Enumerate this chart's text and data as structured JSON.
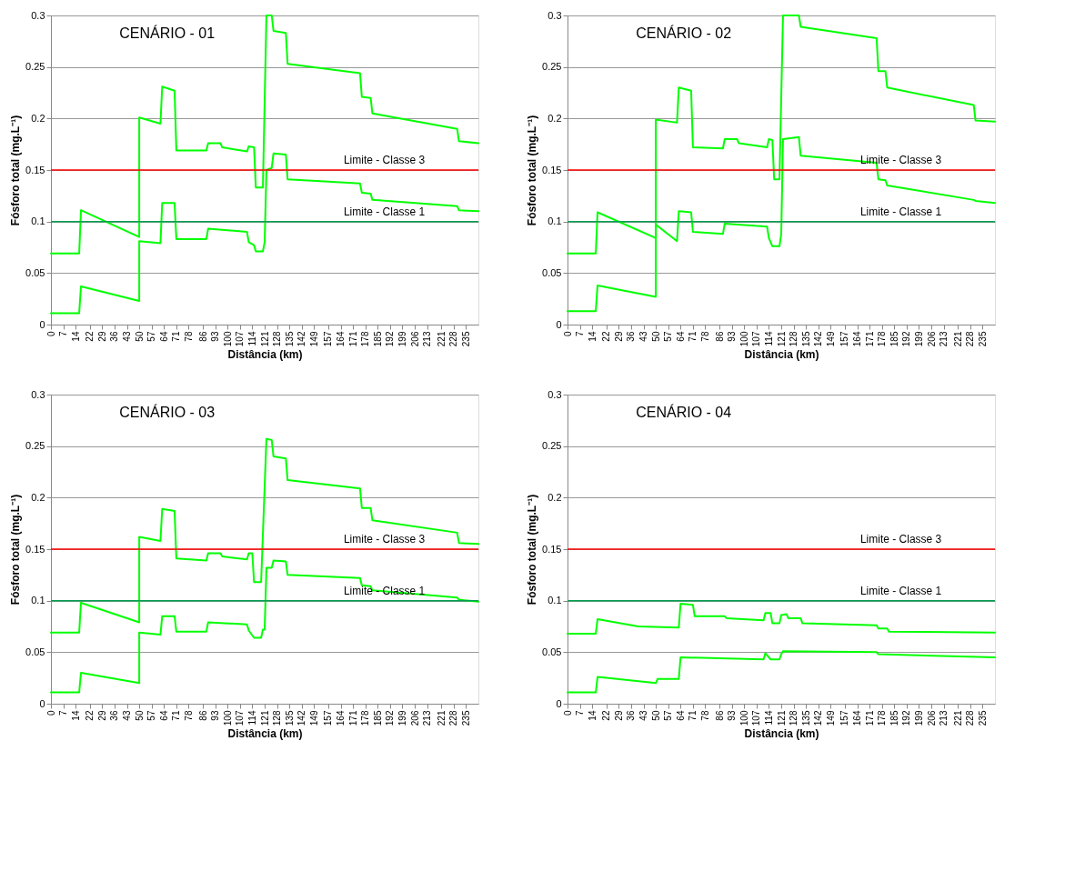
{
  "chart_data": [
    {
      "type": "line",
      "title": "CENÁRIO - 01",
      "xlabel": "Distância (km)",
      "ylabel": "Fósforo total (mg.L⁻¹)",
      "xlim": [
        0,
        242
      ],
      "ylim": [
        0,
        0.3
      ],
      "xticks": [
        0,
        7,
        14,
        22,
        29,
        36,
        43,
        50,
        57,
        64,
        71,
        78,
        86,
        93,
        100,
        107,
        114,
        121,
        128,
        135,
        142,
        149,
        157,
        164,
        171,
        178,
        185,
        192,
        199,
        206,
        213,
        221,
        228,
        235
      ],
      "yticks": [
        0,
        0.05,
        0.1,
        0.15,
        0.2,
        0.25,
        0.3
      ],
      "grid": "y",
      "legend": false,
      "marker": "none",
      "line_style": "solid",
      "series": [
        {
          "color": "#00ff00",
          "x": [
            0,
            16,
            17,
            50,
            50,
            62,
            63,
            70,
            71,
            88,
            89,
            96,
            97,
            111,
            112,
            115,
            116,
            120,
            122,
            125,
            126,
            133,
            134,
            175,
            176,
            181,
            182,
            230,
            231,
            242
          ],
          "values": [
            0.069,
            0.069,
            0.111,
            0.085,
            0.201,
            0.195,
            0.231,
            0.227,
            0.169,
            0.169,
            0.176,
            0.176,
            0.172,
            0.168,
            0.173,
            0.172,
            0.133,
            0.133,
            0.3,
            0.3,
            0.285,
            0.283,
            0.253,
            0.244,
            0.221,
            0.22,
            0.205,
            0.19,
            0.178,
            0.176
          ]
        },
        {
          "color": "#00ff00",
          "x": [
            0,
            16,
            17,
            50,
            50,
            62,
            63,
            70,
            71,
            88,
            89,
            111,
            112,
            115,
            116,
            120,
            121,
            122,
            125,
            126,
            133,
            134,
            175,
            176,
            181,
            182,
            230,
            231,
            242
          ],
          "values": [
            0.011,
            0.011,
            0.037,
            0.023,
            0.081,
            0.079,
            0.118,
            0.118,
            0.083,
            0.083,
            0.093,
            0.09,
            0.08,
            0.077,
            0.071,
            0.071,
            0.08,
            0.15,
            0.152,
            0.166,
            0.165,
            0.141,
            0.137,
            0.128,
            0.127,
            0.121,
            0.115,
            0.111,
            0.11
          ]
        }
      ],
      "ref_lines": [
        {
          "axis": "y",
          "value": 0.15,
          "label": "Limite - Classe 3",
          "color": "#ff0000"
        },
        {
          "axis": "y",
          "value": 0.1,
          "label": "Limite - Classe 1",
          "color": "#00a050"
        }
      ]
    },
    {
      "type": "line",
      "title": "CENÁRIO - 02",
      "xlabel": "Distância (km)",
      "ylabel": "Fósforo total (mg.L⁻¹)",
      "xlim": [
        0,
        242
      ],
      "ylim": [
        0,
        0.3
      ],
      "xticks": [
        0,
        7,
        14,
        22,
        29,
        36,
        43,
        50,
        57,
        64,
        71,
        78,
        86,
        93,
        100,
        107,
        114,
        121,
        128,
        135,
        142,
        149,
        157,
        164,
        171,
        178,
        185,
        192,
        199,
        206,
        213,
        221,
        228,
        235
      ],
      "yticks": [
        0,
        0.05,
        0.1,
        0.15,
        0.2,
        0.25,
        0.3
      ],
      "grid": "y",
      "legend": false,
      "marker": "none",
      "line_style": "solid",
      "series": [
        {
          "color": "#00ff00",
          "x": [
            0,
            16,
            17,
            50,
            50,
            62,
            63,
            70,
            71,
            88,
            89,
            96,
            97,
            113,
            114,
            116,
            117,
            120,
            122,
            131,
            132,
            175,
            176,
            180,
            181,
            230,
            231,
            242
          ],
          "values": [
            0.069,
            0.069,
            0.109,
            0.084,
            0.199,
            0.196,
            0.23,
            0.227,
            0.172,
            0.171,
            0.18,
            0.18,
            0.176,
            0.172,
            0.18,
            0.179,
            0.141,
            0.141,
            0.3,
            0.3,
            0.289,
            0.278,
            0.246,
            0.246,
            0.23,
            0.213,
            0.198,
            0.197
          ]
        },
        {
          "color": "#00ff00",
          "x": [
            0,
            16,
            17,
            50,
            50,
            62,
            63,
            70,
            71,
            88,
            89,
            113,
            114,
            116,
            120,
            121,
            122,
            131,
            132,
            175,
            176,
            180,
            181,
            230,
            231,
            242
          ],
          "values": [
            0.013,
            0.013,
            0.038,
            0.027,
            0.097,
            0.081,
            0.11,
            0.109,
            0.09,
            0.088,
            0.098,
            0.095,
            0.084,
            0.076,
            0.076,
            0.088,
            0.18,
            0.182,
            0.164,
            0.157,
            0.141,
            0.14,
            0.135,
            0.121,
            0.12,
            0.118
          ]
        }
      ],
      "ref_lines": [
        {
          "axis": "y",
          "value": 0.15,
          "label": "Limite - Classe 3",
          "color": "#ff0000"
        },
        {
          "axis": "y",
          "value": 0.1,
          "label": "Limite - Classe 1",
          "color": "#00a050"
        }
      ]
    },
    {
      "type": "line",
      "title": "CENÁRIO - 03",
      "xlabel": "Distância (km)",
      "ylabel": "Fósforo total (mg.L⁻¹)",
      "xlim": [
        0,
        242
      ],
      "ylim": [
        0,
        0.3
      ],
      "xticks": [
        0,
        7,
        14,
        22,
        29,
        36,
        43,
        50,
        57,
        64,
        71,
        78,
        86,
        93,
        100,
        107,
        114,
        121,
        128,
        135,
        142,
        149,
        157,
        164,
        171,
        178,
        185,
        192,
        199,
        206,
        213,
        221,
        228,
        235
      ],
      "yticks": [
        0,
        0.05,
        0.1,
        0.15,
        0.2,
        0.25,
        0.3
      ],
      "grid": "y",
      "legend": false,
      "marker": "none",
      "line_style": "solid",
      "series": [
        {
          "color": "#00ff00",
          "x": [
            0,
            16,
            17,
            50,
            50,
            62,
            63,
            70,
            71,
            88,
            89,
            96,
            97,
            111,
            112,
            114,
            115,
            119,
            122,
            125,
            126,
            133,
            134,
            175,
            176,
            181,
            182,
            230,
            231,
            242
          ],
          "values": [
            0.069,
            0.069,
            0.098,
            0.079,
            0.162,
            0.158,
            0.189,
            0.187,
            0.141,
            0.139,
            0.146,
            0.146,
            0.143,
            0.14,
            0.146,
            0.146,
            0.118,
            0.118,
            0.257,
            0.256,
            0.24,
            0.238,
            0.217,
            0.209,
            0.19,
            0.19,
            0.178,
            0.166,
            0.156,
            0.155
          ]
        },
        {
          "color": "#00ff00",
          "x": [
            0,
            16,
            17,
            50,
            50,
            62,
            63,
            70,
            71,
            88,
            89,
            111,
            112,
            115,
            119,
            120,
            121,
            122,
            125,
            126,
            133,
            134,
            175,
            176,
            181,
            182,
            230,
            231,
            242
          ],
          "values": [
            0.011,
            0.011,
            0.03,
            0.02,
            0.069,
            0.067,
            0.085,
            0.085,
            0.07,
            0.07,
            0.079,
            0.077,
            0.071,
            0.064,
            0.064,
            0.072,
            0.072,
            0.132,
            0.132,
            0.139,
            0.138,
            0.125,
            0.122,
            0.115,
            0.114,
            0.11,
            0.103,
            0.101,
            0.099
          ]
        }
      ],
      "ref_lines": [
        {
          "axis": "y",
          "value": 0.15,
          "label": "Limite - Classe 3",
          "color": "#ff0000"
        },
        {
          "axis": "y",
          "value": 0.1,
          "label": "Limite - Classe 1",
          "color": "#00a050"
        }
      ]
    },
    {
      "type": "line",
      "title": "CENÁRIO - 04",
      "xlabel": "Distância (km)",
      "ylabel": "Fósforo total (mg.L⁻¹)",
      "xlim": [
        0,
        242
      ],
      "ylim": [
        0,
        0.3
      ],
      "xticks": [
        0,
        7,
        14,
        22,
        29,
        36,
        43,
        50,
        57,
        64,
        71,
        78,
        86,
        93,
        100,
        107,
        114,
        121,
        128,
        135,
        142,
        149,
        157,
        164,
        171,
        178,
        185,
        192,
        199,
        206,
        213,
        221,
        228,
        235
      ],
      "yticks": [
        0,
        0.05,
        0.1,
        0.15,
        0.2,
        0.25,
        0.3
      ],
      "grid": "y",
      "legend": false,
      "marker": "none",
      "line_style": "solid",
      "series": [
        {
          "color": "#00ff00",
          "x": [
            0,
            16,
            17,
            40,
            63,
            64,
            71,
            72,
            89,
            90,
            111,
            112,
            115,
            116,
            120,
            121,
            124,
            125,
            132,
            133,
            175,
            176,
            181,
            182,
            242
          ],
          "values": [
            0.068,
            0.068,
            0.082,
            0.075,
            0.074,
            0.097,
            0.096,
            0.085,
            0.085,
            0.083,
            0.081,
            0.088,
            0.088,
            0.078,
            0.078,
            0.086,
            0.087,
            0.083,
            0.083,
            0.078,
            0.076,
            0.073,
            0.073,
            0.07,
            0.069
          ]
        },
        {
          "color": "#00ff00",
          "x": [
            0,
            16,
            17,
            50,
            51,
            63,
            64,
            111,
            112,
            115,
            120,
            121,
            122,
            175,
            176,
            242
          ],
          "values": [
            0.011,
            0.011,
            0.026,
            0.02,
            0.024,
            0.024,
            0.045,
            0.043,
            0.049,
            0.043,
            0.043,
            0.048,
            0.051,
            0.05,
            0.048,
            0.045
          ]
        }
      ],
      "ref_lines": [
        {
          "axis": "y",
          "value": 0.15,
          "label": "Limite - Classe 3",
          "color": "#ff0000"
        },
        {
          "axis": "y",
          "value": 0.1,
          "label": "Limite - Classe 1",
          "color": "#00a050"
        }
      ]
    }
  ]
}
